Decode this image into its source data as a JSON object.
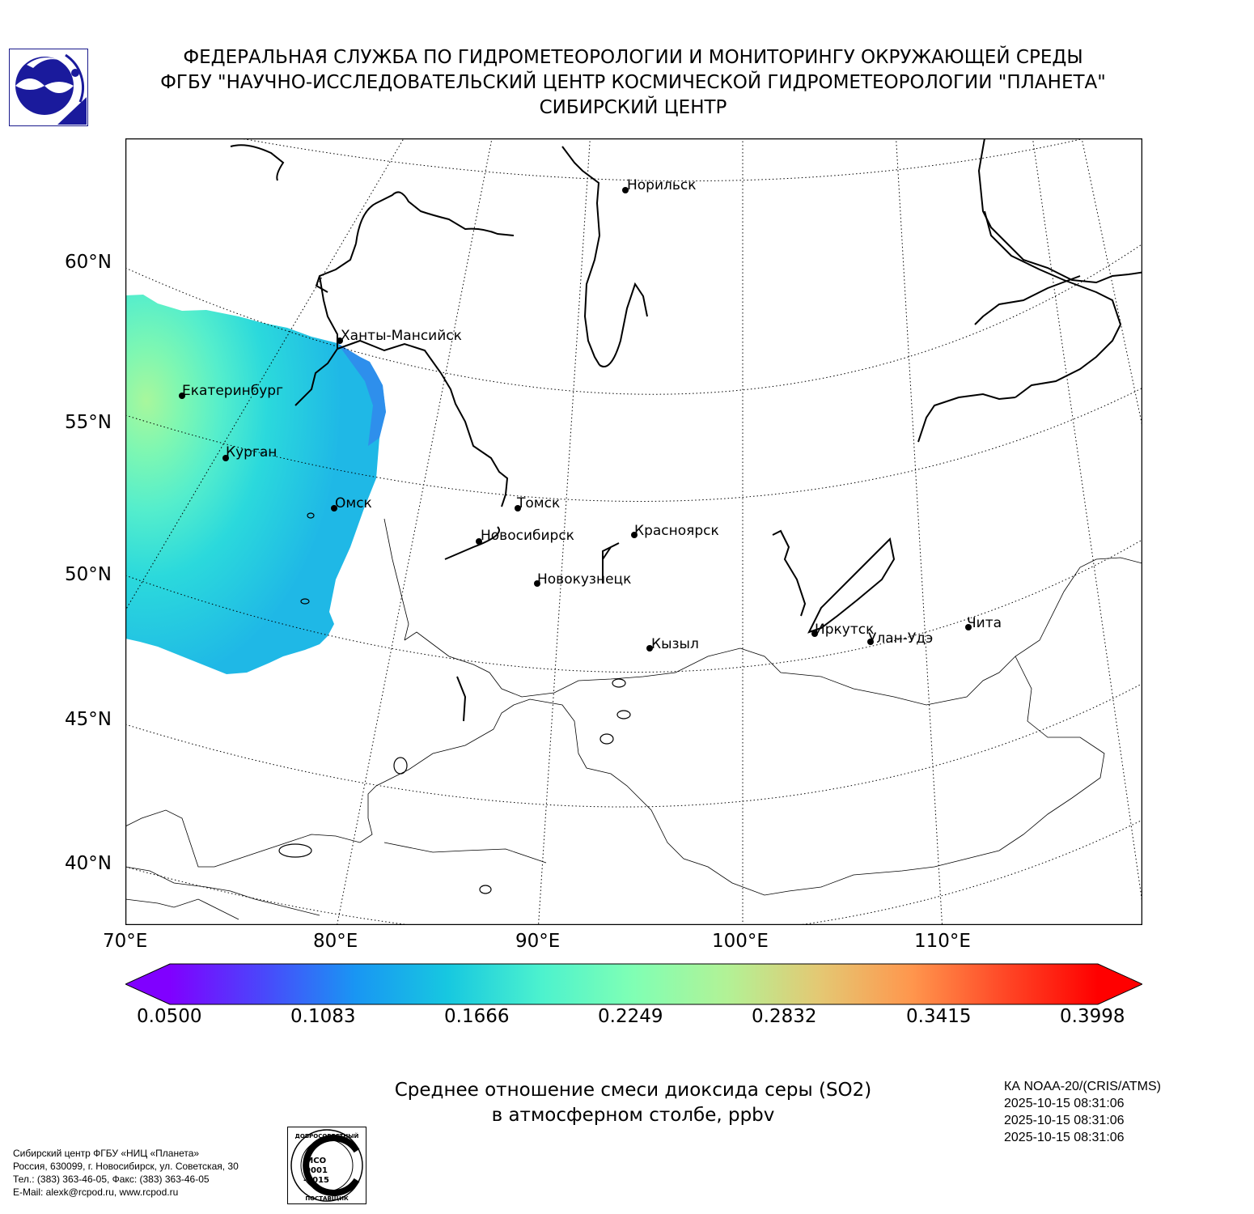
{
  "header": {
    "line1": "ФЕДЕРАЛЬНАЯ СЛУЖБА ПО ГИДРОМЕТЕОРОЛОГИИ И МОНИТОРИНГУ ОКРУЖАЮЩЕЙ СРЕДЫ",
    "line2": "ФГБУ \"НАУЧНО-ИССЛЕДОВАТЕЛЬСКИЙ ЦЕНТР КОСМИЧЕСКОЙ ГИДРОМЕТЕОРОЛОГИИ \"ПЛАНЕТА\"",
    "line3": "СИБИРСКИЙ ЦЕНТР"
  },
  "map": {
    "lat_labels": [
      "60°N",
      "55°N",
      "50°N",
      "45°N",
      "40°N"
    ],
    "lon_labels": [
      "70°E",
      "80°E",
      "90°E",
      "100°E",
      "110°E"
    ],
    "cities": [
      {
        "name": "Норильск"
      },
      {
        "name": "Ханты-Мансийск"
      },
      {
        "name": "Екатеринбург"
      },
      {
        "name": "Курган"
      },
      {
        "name": "Омск"
      },
      {
        "name": "Томск"
      },
      {
        "name": "Новосибирск"
      },
      {
        "name": "Красноярск"
      },
      {
        "name": "Новокузнецк"
      },
      {
        "name": "Кызыл"
      },
      {
        "name": "Иркутск"
      },
      {
        "name": "Улан-Удэ"
      },
      {
        "name": "Чита"
      }
    ]
  },
  "colorbar": {
    "min": 0.05,
    "max": 0.3998,
    "tick_labels": [
      "0.0500",
      "0.1083",
      "0.1666",
      "0.2249",
      "0.2832",
      "0.3415",
      "0.3998"
    ],
    "colors": [
      "#8000ff",
      "#4a47fb",
      "#1996f3",
      "#17c8e0",
      "#4cf2ce",
      "#80ffb4",
      "#b2f296",
      "#e4c873",
      "#ff964d",
      "#ff4726",
      "#ff0000"
    ]
  },
  "caption": {
    "line1": "Среднее отношение смеси диоксида серы (SO2)",
    "line2": "в атмосферном столбе, ppbv"
  },
  "satellite": {
    "name": "КА NOAA-20/(CRIS/ATMS)",
    "time1": "2025-10-15 08:31:06",
    "time2": "2025-10-15 08:31:06",
    "time3": "2025-10-15 08:31:06"
  },
  "footer": {
    "line1": "Сибирский центр ФГБУ «НИЦ «Планета»",
    "line2": "Россия, 630099, г. Новосибирск, ул. Советская, 30",
    "line3": "Тел.: (383) 363-46-05, Факс: (383) 363-46-05",
    "line4": "E-Mail: alexk@rcpod.ru, www.rcpod.ru"
  },
  "iso_stamp": {
    "top_text": "ДОБРОСОВЕСТНЫЙ",
    "middle_text": "ИСО 9001 -2015",
    "bottom_text": "ПОСТАВЩИК"
  }
}
